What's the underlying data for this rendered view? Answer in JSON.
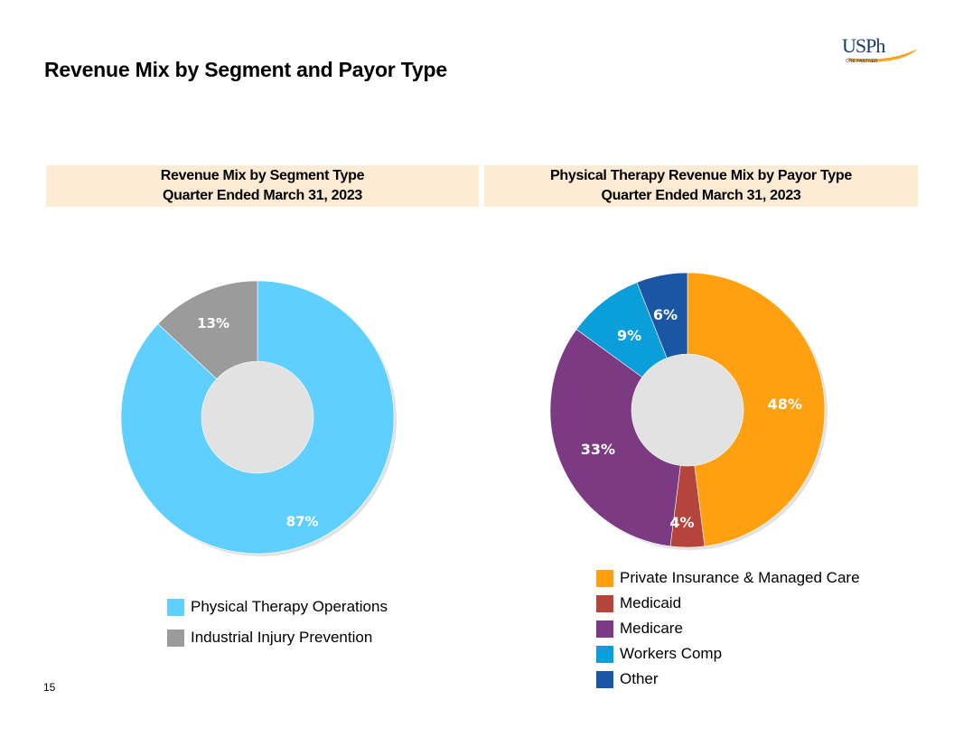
{
  "page": {
    "title": "Revenue Mix by Segment and Payor Type",
    "page_number": "15"
  },
  "logo": {
    "letters": "USPh",
    "tagline": "ONE PARTNER"
  },
  "colors": {
    "header_bg": "#fdebd3",
    "pt_operations": "#5ecfff",
    "industrial": "#9b9b9b",
    "private": "#ffa010",
    "medicaid": "#b4443c",
    "medicare": "#7b3a82",
    "workers_comp": "#0a9edb",
    "other": "#1a56a4"
  },
  "chart_data": [
    {
      "type": "pie",
      "donut": true,
      "header": [
        "Revenue Mix by Segment Type",
        "Quarter Ended March 31, 2023"
      ],
      "categories": [
        "Physical Therapy Operations",
        "Industrial Injury Prevention"
      ],
      "values": [
        87,
        13
      ],
      "labels": [
        "87%",
        "13%"
      ],
      "colors": [
        "#5ecfff",
        "#9b9b9b"
      ],
      "legend": "bottom"
    },
    {
      "type": "pie",
      "donut": true,
      "header": [
        "Physical Therapy Revenue Mix by Payor Type",
        "Quarter Ended March 31, 2023"
      ],
      "categories": [
        "Private Insurance & Managed Care",
        "Medicaid",
        "Medicare",
        "Workers Comp",
        "Other"
      ],
      "values": [
        48,
        4,
        33,
        9,
        6
      ],
      "labels": [
        "48%",
        "4%",
        "33%",
        "9%",
        "6%"
      ],
      "colors": [
        "#ffa010",
        "#b4443c",
        "#7b3a82",
        "#0a9edb",
        "#1a56a4"
      ],
      "legend": "bottom"
    }
  ]
}
